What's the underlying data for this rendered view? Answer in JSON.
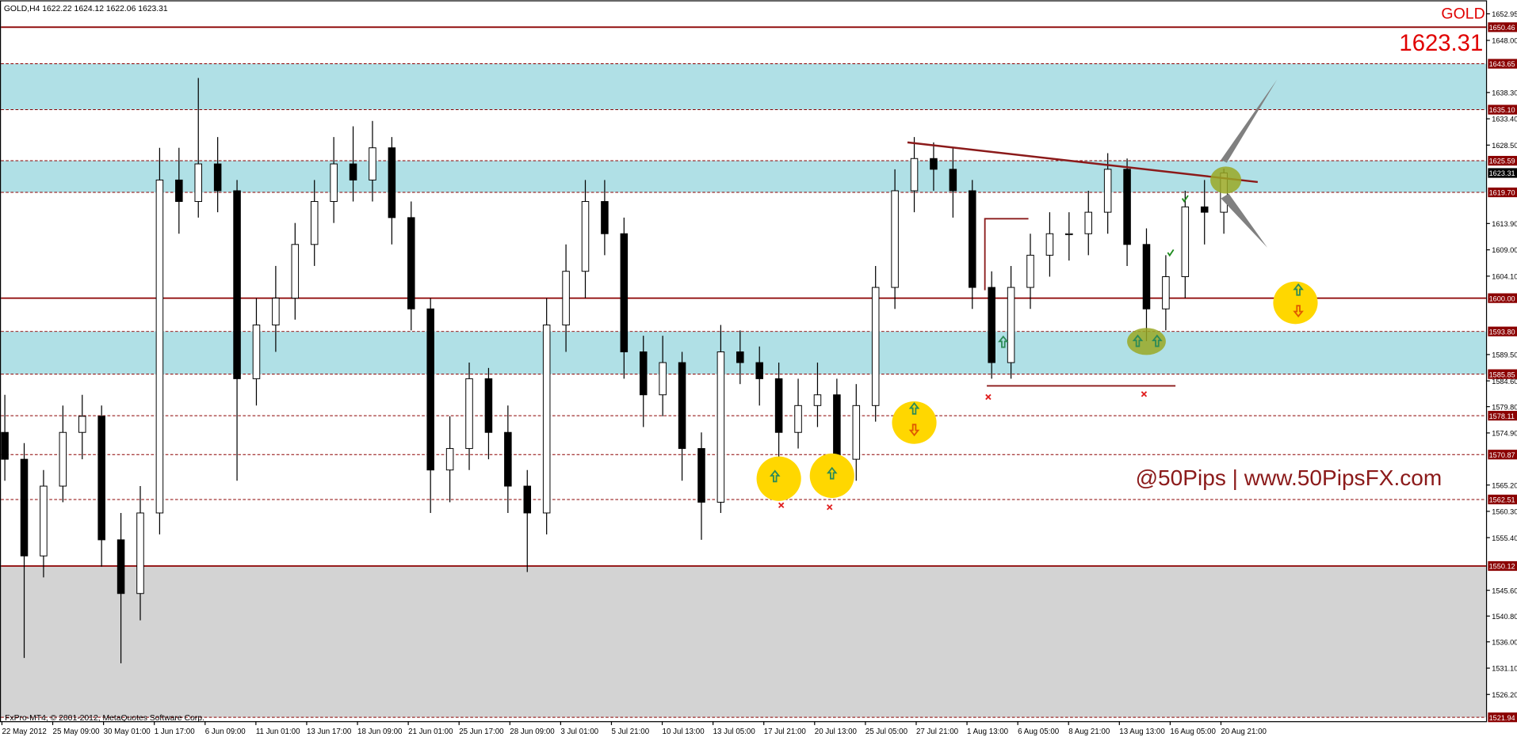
{
  "chart_data": {
    "type": "candlestick",
    "title": "GOLD,H4  1622.22 1624.12 1622.06 1623.31",
    "symbol": "GOLD",
    "last_price": 1623.31,
    "watermark": "@50Pips | www.50PipsFX.com",
    "footer": "FxPro-MT4, © 2001-2012, MetaQuotes Software Corp.",
    "x_labels": [
      "22 May 2012",
      "25 May 09:00",
      "30 May 01:00",
      "1 Jun 17:00",
      "6 Jun 09:00",
      "11 Jun 01:00",
      "13 Jun 17:00",
      "18 Jun 09:00",
      "21 Jun 01:00",
      "25 Jun 17:00",
      "28 Jun 09:00",
      "3 Jul 01:00",
      "5 Jul 21:00",
      "10 Jul 13:00",
      "13 Jul 05:00",
      "17 Jul 21:00",
      "20 Jul 13:00",
      "25 Jul 05:00",
      "27 Jul 21:00",
      "1 Aug 13:00",
      "6 Aug 05:00",
      "8 Aug 21:00",
      "13 Aug 13:00",
      "16 Aug 05:00",
      "20 Aug 21:00"
    ],
    "open": [
      1575,
      1570,
      1552,
      1565,
      1575,
      1578,
      1555,
      1545,
      1560,
      1622,
      1618,
      1625,
      1620,
      1585,
      1595,
      1600,
      1610,
      1618,
      1625,
      1622,
      1628,
      1615,
      1598,
      1568,
      1572,
      1585,
      1575,
      1565,
      1560,
      1595,
      1605,
      1618,
      1612,
      1590,
      1582,
      1588,
      1572,
      1562,
      1590,
      1588,
      1585,
      1575,
      1580,
      1582,
      1570,
      1580,
      1602,
      1620,
      1626,
      1624,
      1620,
      1602,
      1588,
      1602,
      1608,
      1612,
      1612,
      1616,
      1624,
      1610,
      1598,
      1604,
      1617,
      1616
    ],
    "high": [
      1582,
      1573,
      1568,
      1580,
      1582,
      1580,
      1560,
      1565,
      1628,
      1628,
      1641,
      1630,
      1622,
      1600,
      1606,
      1614,
      1622,
      1630,
      1632,
      1633,
      1630,
      1618,
      1600,
      1578,
      1588,
      1587,
      1580,
      1568,
      1600,
      1610,
      1622,
      1622,
      1615,
      1593,
      1593,
      1590,
      1575,
      1595,
      1594,
      1591,
      1588,
      1585,
      1588,
      1585,
      1584,
      1606,
      1624,
      1630,
      1629,
      1628,
      1622,
      1605,
      1606,
      1612,
      1616,
      1616,
      1620,
      1627,
      1626,
      1613,
      1608,
      1620,
      1622,
      1624.12
    ],
    "low": [
      1566,
      1533,
      1548,
      1562,
      1570,
      1550,
      1532,
      1540,
      1556,
      1612,
      1615,
      1616,
      1566,
      1580,
      1590,
      1596,
      1606,
      1614,
      1618,
      1618,
      1610,
      1594,
      1560,
      1562,
      1568,
      1570,
      1560,
      1549,
      1556,
      1590,
      1600,
      1608,
      1585,
      1576,
      1578,
      1566,
      1555,
      1560,
      1584,
      1580,
      1570,
      1572,
      1576,
      1563,
      1566,
      1577,
      1598,
      1616,
      1620,
      1615,
      1598,
      1585,
      1585,
      1598,
      1604,
      1607,
      1608,
      1612,
      1606,
      1592,
      1594,
      1600,
      1610,
      1612
    ],
    "close": [
      1570,
      1552,
      1565,
      1575,
      1578,
      1555,
      1545,
      1560,
      1622,
      1618,
      1625,
      1620,
      1585,
      1595,
      1600,
      1610,
      1618,
      1625,
      1622,
      1628,
      1615,
      1598,
      1568,
      1572,
      1585,
      1575,
      1565,
      1560,
      1595,
      1605,
      1618,
      1612,
      1590,
      1582,
      1588,
      1572,
      1562,
      1590,
      1588,
      1585,
      1575,
      1580,
      1582,
      1570,
      1580,
      1602,
      1620,
      1626,
      1624,
      1620,
      1602,
      1588,
      1602,
      1608,
      1612,
      1612,
      1616,
      1624,
      1610,
      1598,
      1604,
      1617,
      1616,
      1623.31
    ],
    "up_color": "#ffffff",
    "down_color": "#000000",
    "ylim": [
      1521.94,
      1655.46
    ],
    "yticks": [
      1652.95,
      {
        "value": 1648.0,
        "label": "1648.00"
      },
      {
        "value": 1638.3,
        "label": "1638.30"
      },
      {
        "value": 1633.4,
        "label": "1633.40"
      },
      {
        "value": 1628.5,
        "label": "1628.50"
      },
      {
        "value": 1613.9,
        "label": "1613.90"
      },
      {
        "value": 1609.0,
        "label": "1609.00"
      },
      {
        "value": 1604.1,
        "label": "1604.10"
      },
      {
        "value": 1589.5,
        "label": "1589.50"
      },
      {
        "value": 1584.6,
        "label": "1584.60"
      },
      {
        "value": 1579.8,
        "label": "1579.80"
      },
      {
        "value": 1574.9,
        "label": "1574.90"
      },
      {
        "value": 1565.2,
        "label": "1565.20"
      },
      {
        "value": 1560.3,
        "label": "1560.30"
      },
      {
        "value": 1555.4,
        "label": "1555.40"
      },
      {
        "value": 1545.6,
        "label": "1545.60"
      },
      {
        "value": 1540.8,
        "label": "1540.80"
      },
      {
        "value": 1536.0,
        "label": "1536.00"
      },
      {
        "value": 1531.1,
        "label": "1531.10"
      },
      {
        "value": 1526.2,
        "label": "1526.20"
      }
    ],
    "levels": [
      {
        "value": 1650.46,
        "style": "solid"
      },
      {
        "value": 1643.65,
        "style": "dashed"
      },
      {
        "value": 1635.1,
        "label": "1635.10",
        "style": "dashed"
      },
      {
        "value": 1625.59,
        "style": "dashed"
      },
      {
        "value": 1619.7,
        "label": "1619.70",
        "style": "dashed"
      },
      {
        "value": 1600.0,
        "label": "1600.00",
        "style": "solid"
      },
      {
        "value": 1593.8,
        "label": "1593.80",
        "style": "dashed"
      },
      {
        "value": 1585.85,
        "style": "dashed"
      },
      {
        "value": 1578.11,
        "style": "dashed"
      },
      {
        "value": 1570.87,
        "style": "dashed"
      },
      {
        "value": 1562.51,
        "style": "dashed"
      },
      {
        "value": 1550.12,
        "style": "solid"
      },
      {
        "value": 1521.94,
        "style": "dashed"
      }
    ],
    "level_color": "#8b0000",
    "zones": [
      [
        1635.1,
        1643.65
      ],
      [
        1619.7,
        1625.59
      ],
      [
        1585.85,
        1593.8
      ]
    ],
    "zone_color": "#b0e0e6",
    "lower_zone": [
      1521.94,
      1550.12
    ],
    "lower_zone_color": "#d3d3d3"
  }
}
